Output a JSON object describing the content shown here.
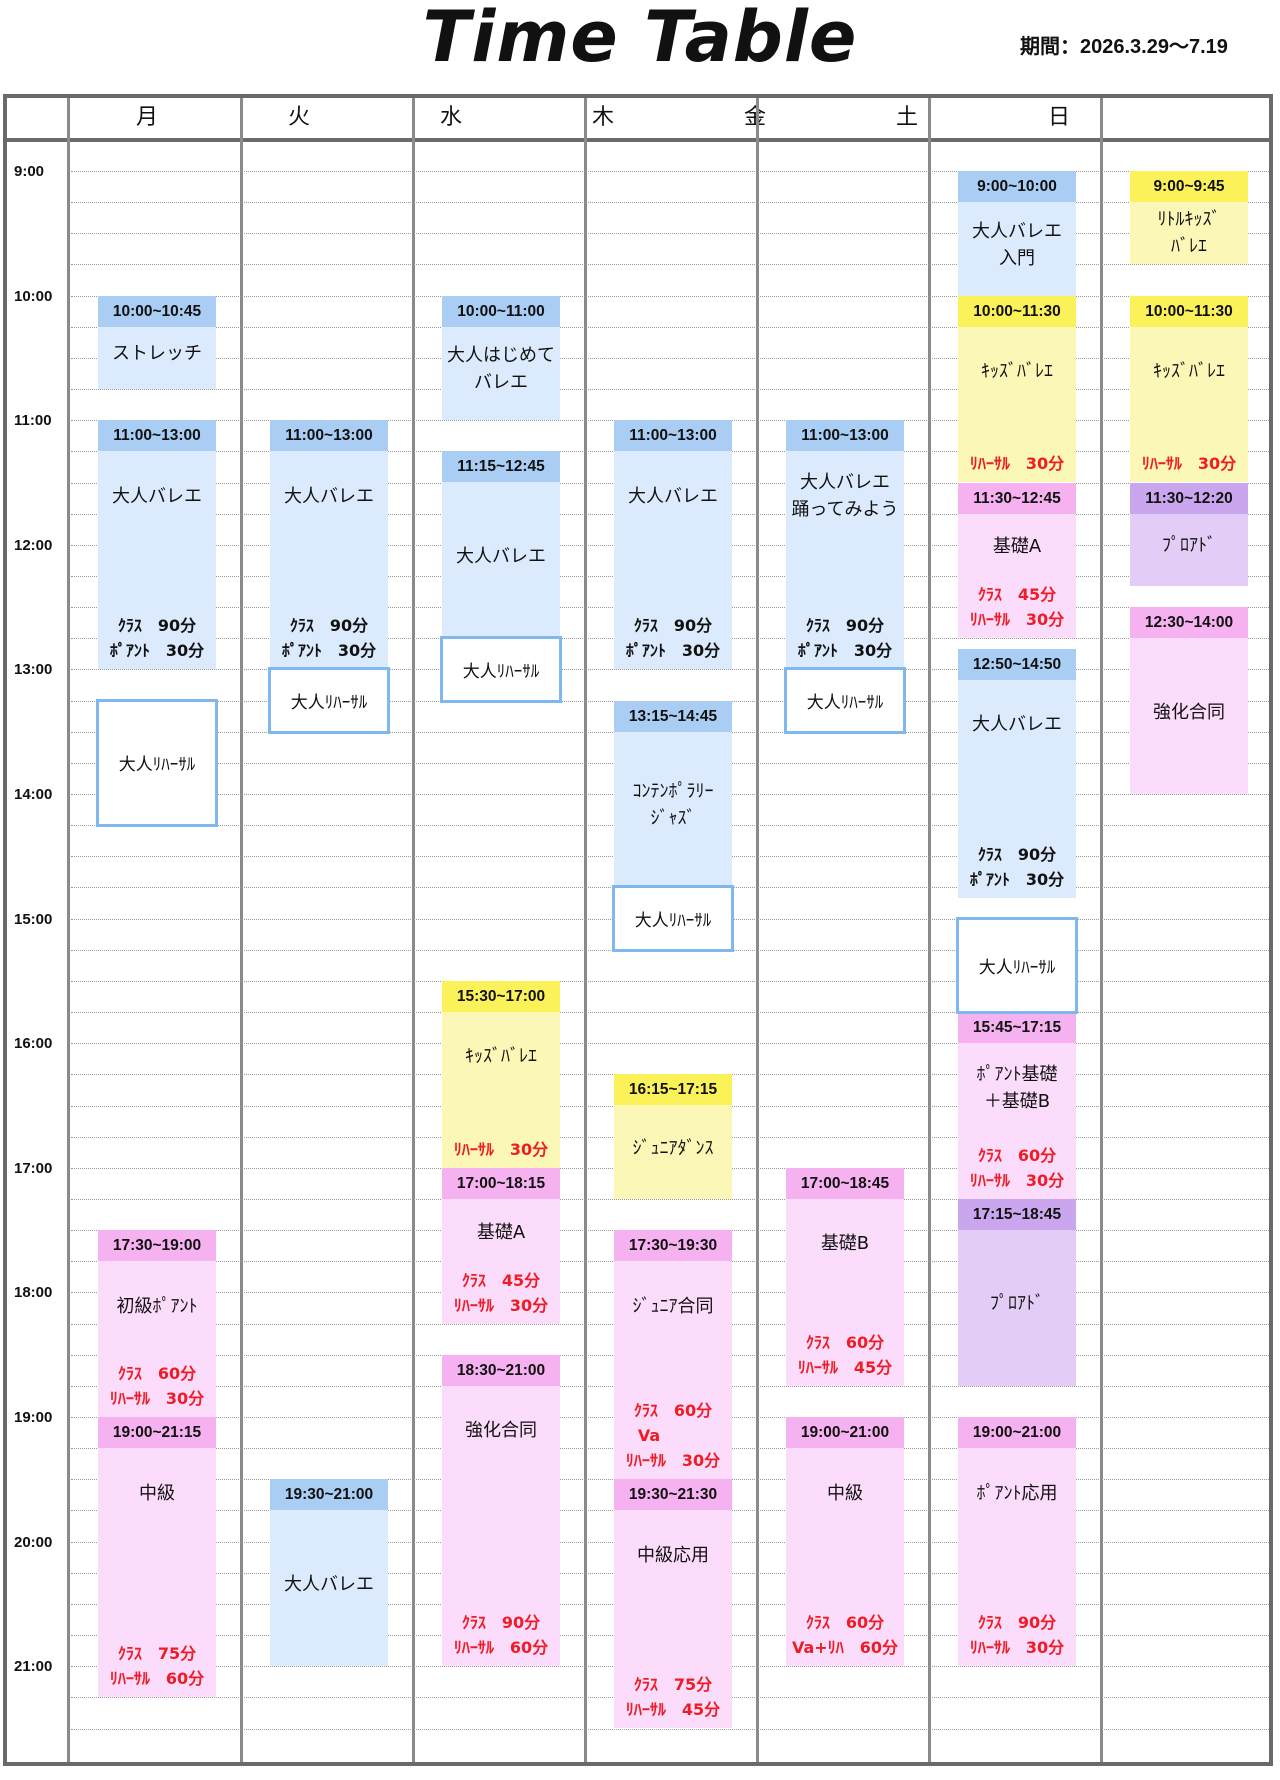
{
  "title": "Time Table",
  "period": "期間：2026.3.29～7.19",
  "days": [
    "月",
    "火",
    "水",
    "木",
    "金",
    "土",
    "日"
  ],
  "times": [
    "9:00",
    "10:00",
    "11:00",
    "12:00",
    "13:00",
    "14:00",
    "15:00",
    "16:00",
    "17:00",
    "18:00",
    "19:00",
    "20:00",
    "21:00"
  ],
  "colors": {
    "blue": "#dbeafc",
    "blue_header": "#a9cdf3",
    "pink": "#fcdcfb",
    "pink_header": "#f5b1f0",
    "yellow": "#fbf7b7",
    "yellow_header": "#fbf25a",
    "purple": "#e3cdf6",
    "purple_header": "#caa6ef",
    "rehearsal_border": "#7fb7ef",
    "notes_red": "#ee1c25"
  },
  "classes": [
    {
      "day": 0,
      "start": "10:00",
      "end": "10:45",
      "color": "blue",
      "time": "10:00~10:45",
      "name": "ストレッチ",
      "notes": []
    },
    {
      "day": 0,
      "start": "11:00",
      "end": "13:00",
      "color": "blue",
      "time": "11:00~13:00",
      "name": "大人バレエ",
      "notes": [
        "ｸﾗｽ　90分",
        "ﾎﾟｱﾝﾄ　30分"
      ],
      "notes_color": "black"
    },
    {
      "day": 0,
      "start": "17:30",
      "end": "19:00",
      "color": "pink",
      "time": "17:30~19:00",
      "name": "初級ﾎﾟｱﾝﾄ",
      "notes": [
        "ｸﾗｽ　60分",
        "ﾘﾊｰｻﾙ　30分"
      ],
      "notes_color": "red"
    },
    {
      "day": 0,
      "start": "19:00",
      "end": "21:15",
      "color": "pink",
      "time": "19:00~21:15",
      "name": "中級",
      "notes": [
        "ｸﾗｽ　75分",
        "ﾘﾊｰｻﾙ　60分"
      ],
      "notes_color": "red"
    },
    {
      "day": 1,
      "start": "11:00",
      "end": "13:00",
      "color": "blue",
      "time": "11:00~13:00",
      "name": "大人バレエ",
      "notes": [
        "ｸﾗｽ　90分",
        "ﾎﾟｱﾝﾄ　30分"
      ],
      "notes_color": "black"
    },
    {
      "day": 1,
      "start": "19:30",
      "end": "21:00",
      "color": "blue",
      "time": "19:30~21:00",
      "name": "大人バレエ",
      "notes": []
    },
    {
      "day": 2,
      "start": "10:00",
      "end": "11:00",
      "color": "blue",
      "time": "10:00~11:00",
      "name": "大人はじめて\nバレエ",
      "notes": []
    },
    {
      "day": 2,
      "start": "11:15",
      "end": "12:45",
      "color": "blue",
      "time": "11:15~12:45",
      "name": "大人バレエ",
      "notes": []
    },
    {
      "day": 2,
      "start": "15:30",
      "end": "17:00",
      "color": "yellow",
      "time": "15:30~17:00",
      "name": "ｷｯｽﾞﾊﾞﾚｴ",
      "notes": [
        "ﾘﾊｰｻﾙ　30分"
      ],
      "notes_color": "red"
    },
    {
      "day": 2,
      "start": "17:00",
      "end": "18:15",
      "color": "pink",
      "time": "17:00~18:15",
      "name": "基礎A",
      "notes": [
        "ｸﾗｽ　45分",
        "ﾘﾊｰｻﾙ　30分"
      ],
      "notes_color": "red"
    },
    {
      "day": 2,
      "start": "18:30",
      "end": "21:00",
      "color": "pink",
      "time": "18:30~21:00",
      "name": "強化合同",
      "notes": [
        "ｸﾗｽ　90分",
        "ﾘﾊｰｻﾙ　60分"
      ],
      "notes_color": "red"
    },
    {
      "day": 3,
      "start": "11:00",
      "end": "13:00",
      "color": "blue",
      "time": "11:00~13:00",
      "name": "大人バレエ",
      "notes": [
        "ｸﾗｽ　90分",
        "ﾎﾟｱﾝﾄ　30分"
      ],
      "notes_color": "black"
    },
    {
      "day": 3,
      "start": "13:15",
      "end": "14:45",
      "color": "blue",
      "time": "13:15~14:45",
      "name": "ｺﾝﾃﾝﾎﾟﾗﾘｰ\nｼﾞｬｽﾞ",
      "notes": []
    },
    {
      "day": 3,
      "start": "16:15",
      "end": "17:15",
      "color": "yellow",
      "time": "16:15~17:15",
      "name": "ｼﾞｭﾆｱﾀﾞﾝｽ",
      "notes": []
    },
    {
      "day": 3,
      "start": "17:30",
      "end": "19:30",
      "color": "pink",
      "time": "17:30~19:30",
      "name": "ｼﾞｭﾆｱ合同",
      "notes": [
        "ｸﾗｽ　60分",
        "Va　　　",
        "ﾘﾊｰｻﾙ　30分"
      ],
      "notes_color": "red"
    },
    {
      "day": 3,
      "start": "19:30",
      "end": "21:30",
      "color": "pink",
      "time": "19:30~21:30",
      "name": "中級応用",
      "notes": [
        "ｸﾗｽ　75分",
        "ﾘﾊｰｻﾙ　45分"
      ],
      "notes_color": "red"
    },
    {
      "day": 4,
      "start": "11:00",
      "end": "13:00",
      "color": "blue",
      "time": "11:00~13:00",
      "name": "大人バレエ\n踊ってみよう",
      "notes": [
        "ｸﾗｽ　90分",
        "ﾎﾟｱﾝﾄ　30分"
      ],
      "notes_color": "black"
    },
    {
      "day": 4,
      "start": "17:00",
      "end": "18:45",
      "color": "pink",
      "time": "17:00~18:45",
      "name": "基礎B",
      "notes": [
        "ｸﾗｽ　60分",
        "ﾘﾊｰｻﾙ　45分"
      ],
      "notes_color": "red"
    },
    {
      "day": 4,
      "start": "19:00",
      "end": "21:00",
      "color": "pink",
      "time": "19:00~21:00",
      "name": "中級",
      "notes": [
        "ｸﾗｽ　60分",
        "Va+ﾘﾊ　60分"
      ],
      "notes_color": "red"
    },
    {
      "day": 5,
      "start": "9:00",
      "end": "10:00",
      "color": "blue",
      "time": "9:00~10:00",
      "name": "大人バレエ\n入門",
      "notes": []
    },
    {
      "day": 5,
      "start": "10:00",
      "end": "11:30",
      "color": "yellow",
      "time": "10:00~11:30",
      "name": "ｷｯｽﾞﾊﾞﾚｴ",
      "notes": [
        "ﾘﾊｰｻﾙ　30分"
      ],
      "notes_color": "red"
    },
    {
      "day": 5,
      "start": "11:30",
      "end": "12:45",
      "color": "pink",
      "time": "11:30~12:45",
      "name": "基礎A",
      "notes": [
        "ｸﾗｽ　45分",
        "ﾘﾊｰｻﾙ　30分"
      ],
      "notes_color": "red"
    },
    {
      "day": 5,
      "start": "12:50",
      "end": "14:50",
      "color": "blue",
      "time": "12:50~14:50",
      "name": "大人バレエ",
      "notes": [
        "ｸﾗｽ　90分",
        "ﾎﾟｱﾝﾄ　30分"
      ],
      "notes_color": "black"
    },
    {
      "day": 5,
      "start": "15:45",
      "end": "17:15",
      "color": "pink",
      "time": "15:45~17:15",
      "name": "ﾎﾟｱﾝﾄ基礎\n＋基礎B",
      "notes": [
        "ｸﾗｽ　60分",
        "ﾘﾊｰｻﾙ　30分"
      ],
      "notes_color": "red"
    },
    {
      "day": 5,
      "start": "17:15",
      "end": "18:45",
      "color": "purple",
      "time": "17:15~18:45",
      "name": "ﾌﾟﾛｱﾄﾞ",
      "notes": []
    },
    {
      "day": 5,
      "start": "19:00",
      "end": "21:00",
      "color": "pink",
      "time": "19:00~21:00",
      "name": "ﾎﾟｱﾝﾄ応用",
      "notes": [
        "ｸﾗｽ　90分",
        "ﾘﾊｰｻﾙ　30分"
      ],
      "notes_color": "red"
    },
    {
      "day": 6,
      "start": "9:00",
      "end": "9:45",
      "color": "yellow",
      "time": "9:00~9:45",
      "name": "ﾘﾄﾙｷｯｽﾞ\nﾊﾞﾚｴ",
      "notes": []
    },
    {
      "day": 6,
      "start": "10:00",
      "end": "11:30",
      "color": "yellow",
      "time": "10:00~11:30",
      "name": "ｷｯｽﾞﾊﾞﾚｴ",
      "notes": [
        "ﾘﾊｰｻﾙ　30分"
      ],
      "notes_color": "red"
    },
    {
      "day": 6,
      "start": "11:30",
      "end": "12:20",
      "color": "purple",
      "time": "11:30~12:20",
      "name": "ﾌﾟﾛｱﾄﾞ",
      "notes": []
    },
    {
      "day": 6,
      "start": "12:30",
      "end": "14:00",
      "color": "pink",
      "time": "12:30~14:00",
      "name": "強化合同",
      "notes": []
    }
  ],
  "rehearsals": [
    {
      "day": 0,
      "start": "13:15",
      "end": "14:15",
      "label": "大人ﾘﾊｰｻﾙ"
    },
    {
      "day": 1,
      "start": "13:00",
      "end": "13:30",
      "label": "大人ﾘﾊｰｻﾙ"
    },
    {
      "day": 2,
      "start": "12:45",
      "end": "13:15",
      "label": "大人ﾘﾊｰｻﾙ"
    },
    {
      "day": 3,
      "start": "14:45",
      "end": "15:15",
      "label": "大人ﾘﾊｰｻﾙ"
    },
    {
      "day": 4,
      "start": "13:00",
      "end": "13:30",
      "label": "大人ﾘﾊｰｻﾙ"
    },
    {
      "day": 5,
      "start": "15:00",
      "end": "15:45",
      "label": "大人ﾘﾊｰｻﾙ"
    }
  ]
}
